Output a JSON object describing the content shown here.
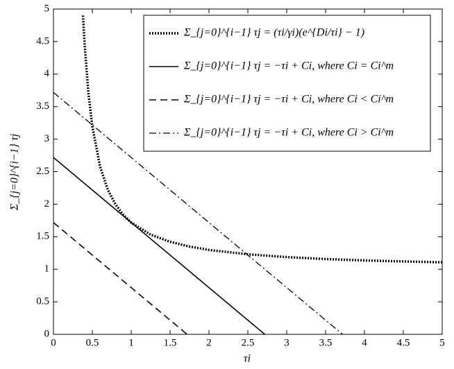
{
  "chart_data": {
    "type": "line",
    "xlabel": "τi",
    "ylabel": "Σ_{j=0}^{i−1} τj",
    "xlim": [
      0,
      5
    ],
    "ylim": [
      0,
      5
    ],
    "xticks": [
      0,
      0.5,
      1,
      1.5,
      2,
      2.5,
      3,
      3.5,
      4,
      4.5,
      5
    ],
    "yticks": [
      0,
      0.5,
      1,
      1.5,
      2,
      2.5,
      3,
      3.5,
      4,
      4.5,
      5
    ],
    "legend": "upper right",
    "series": [
      {
        "name": "Σ_{j=0}^{i−1} τj = (τi/γi)(e^{Di/τi} − 1)",
        "color": "#000000",
        "style": "dotted",
        "x": [
          0.38,
          0.4,
          0.45,
          0.5,
          0.6,
          0.7,
          0.8,
          0.9,
          1,
          1.25,
          1.5,
          1.75,
          2,
          2.5,
          3,
          3.5,
          4,
          4.5,
          5
        ],
        "values": [
          4.9,
          4.473,
          3.702,
          3.195,
          2.576,
          2.22,
          1.992,
          1.834,
          1.718,
          1.532,
          1.422,
          1.349,
          1.297,
          1.23,
          1.187,
          1.157,
          1.136,
          1.12,
          1.107
        ]
      },
      {
        "name": "Σ_{j=0}^{i−1} τj = −τi + Ci, where Ci = Ci^m",
        "color": "#000000",
        "style": "solid",
        "x": [
          0,
          2.718
        ],
        "values": [
          2.718,
          0
        ]
      },
      {
        "name": "Σ_{j=0}^{i−1} τj = −τi + Ci, where Ci < Ci^m",
        "color": "#000000",
        "style": "dashed",
        "x": [
          0,
          1.718
        ],
        "values": [
          1.718,
          0
        ]
      },
      {
        "name": "Σ_{j=0}^{i−1} τj = −τi + Ci, where Ci > Ci^m",
        "color": "#000000",
        "style": "dashdot",
        "x": [
          0,
          3.718
        ],
        "values": [
          3.718,
          0
        ]
      }
    ]
  }
}
